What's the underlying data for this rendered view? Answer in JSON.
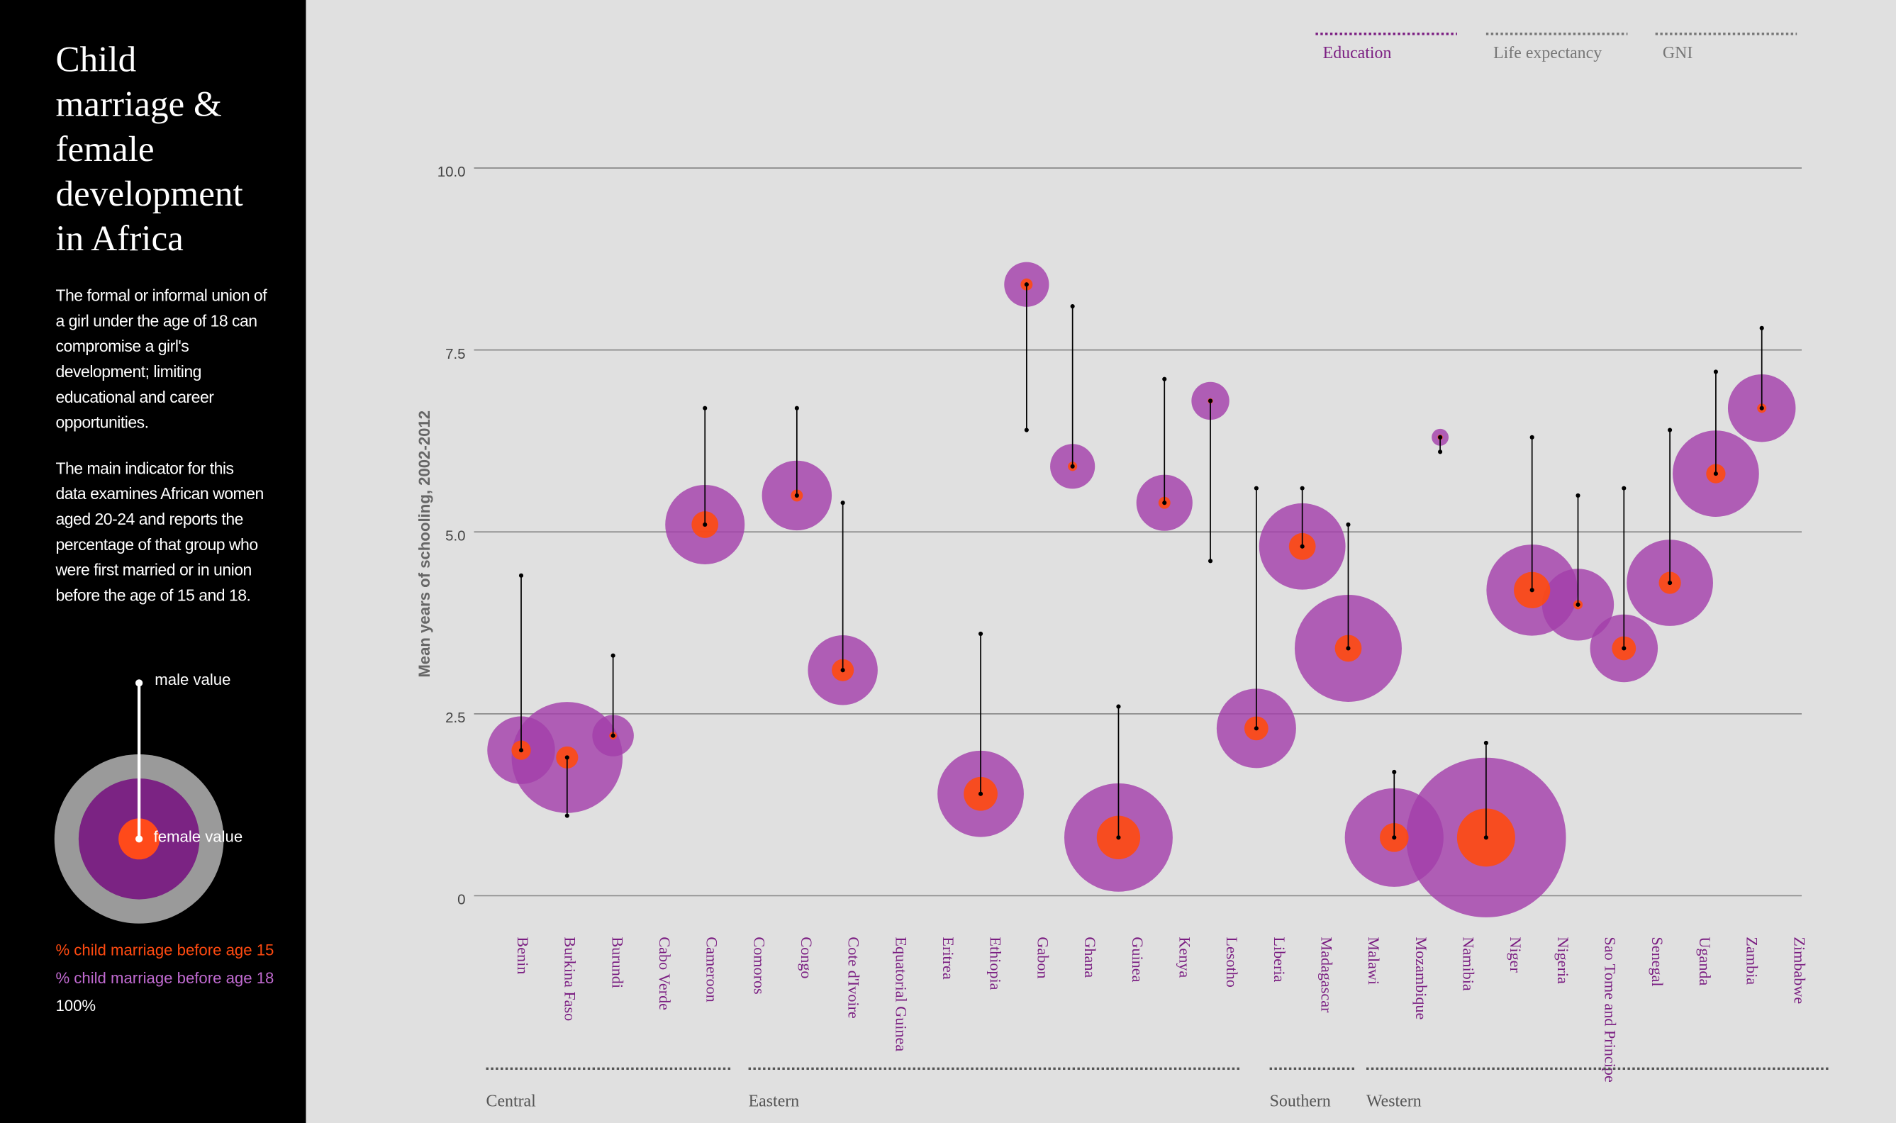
{
  "sidebar": {
    "title": "Child marriage & female development in Africa",
    "paragraphs": [
      "The formal or informal union of a girl under the age of 18 can compromise a girl's development; limiting educational and career opportunities.",
      "The main indicator for this data examines African women aged 20-24 and reports the percentage of that group who were first married or in union before the age of 15 and 18."
    ]
  },
  "tabs": [
    {
      "label": "Education",
      "active": true
    },
    {
      "label": "Life expectancy",
      "active": false
    },
    {
      "label": "GNI",
      "active": false
    }
  ],
  "chart_data": {
    "type": "bubble",
    "y_label": "Mean years of schooling, 2002-2012",
    "categories": [
      "Benin",
      "Burkina Faso",
      "Burundi",
      "Cabo Verde",
      "Cameroon",
      "Comoros",
      "Congo",
      "Cote d'Ivoire",
      "Equatorial Guinea",
      "Eritrea",
      "Ethiopia",
      "Gabon",
      "Ghana",
      "Guinea",
      "Kenya",
      "Lesotho",
      "Liberia",
      "Madagascar",
      "Malawi",
      "Mozambique",
      "Namibia",
      "Niger",
      "Nigeria",
      "Sao Tome and Principe",
      "Senegal",
      "Uganda",
      "Zambia",
      "Zimbabwe"
    ],
    "regions": [
      "Central",
      "Eastern",
      "Southern",
      "Western"
    ],
    "series": [
      {
        "name": "female value",
        "color": "#000000",
        "values": [
          2.0,
          1.9,
          2.2,
          null,
          5.1,
          null,
          5.5,
          3.1,
          null,
          null,
          1.4,
          8.4,
          5.9,
          0.8,
          5.4,
          6.8,
          2.3,
          4.8,
          3.4,
          0.8,
          6.3,
          0.8,
          4.2,
          4.0,
          3.4,
          4.3,
          5.8,
          6.7
        ]
      },
      {
        "name": "male value",
        "color": "#000000",
        "values": [
          4.4,
          1.1,
          3.3,
          null,
          6.7,
          null,
          6.7,
          5.4,
          null,
          null,
          3.6,
          6.4,
          8.1,
          2.6,
          7.1,
          4.6,
          5.6,
          5.6,
          5.1,
          1.7,
          6.1,
          2.1,
          6.3,
          5.5,
          5.6,
          6.4,
          7.2,
          7.8
        ]
      }
    ],
    "sizes": [
      {
        "name": "% child marriage before age 15",
        "color": "#ff4a10",
        "values": [
          1.3,
          1.7,
          0.2,
          null,
          2.5,
          null,
          0.5,
          1.7,
          null,
          null,
          4,
          0.5,
          0.3,
          6.6,
          0.5,
          0.1,
          2,
          2.5,
          2.5,
          2.9,
          0.1,
          11.8,
          4.6,
          0.3,
          2,
          1.7,
          1.3,
          0.3
        ]
      },
      {
        "name": "% child marriage before age 18",
        "color": "#a33fab",
        "values": [
          16,
          43,
          6,
          null,
          22,
          null,
          17,
          17,
          null,
          null,
          26,
          7,
          7,
          41,
          11,
          5,
          22,
          26,
          40,
          34,
          1,
          89,
          29,
          18,
          16,
          26,
          26,
          16
        ]
      }
    ],
    "size_reference": {
      "value": 100,
      "label": "100%"
    },
    "ylim": [
      0,
      10
    ],
    "yticks": [
      0,
      2.5,
      {
        "value": 5,
        "label": "5.0"
      },
      7.5,
      {
        "value": 10,
        "label": "10.0"
      }
    ],
    "grid": true
  }
}
